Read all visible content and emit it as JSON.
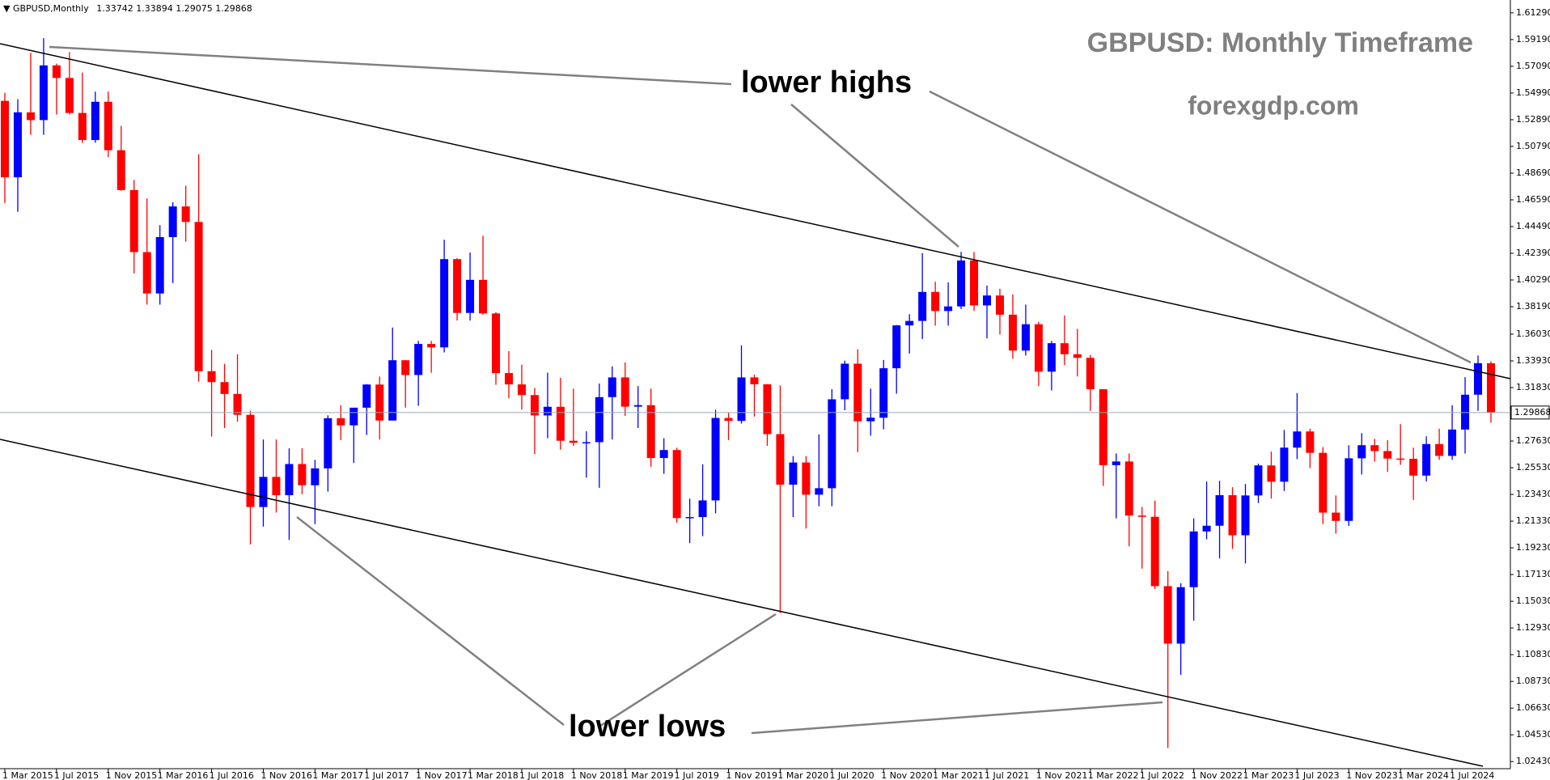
{
  "chart_data": {
    "type": "candlestick",
    "symbol": "GBPUSD,Monthly",
    "title": "GBPUSD: Monthly Timeframe",
    "subtitle": "forexgdp.com",
    "annotations": [
      "lower highs",
      "lower lows"
    ],
    "up_color": "#0000ff",
    "down_color": "#ff0000",
    "categories": [
      "1 Mar 2015",
      null,
      null,
      null,
      "1 Jul 2015",
      null,
      null,
      null,
      "1 Nov 2015",
      null,
      null,
      null,
      "1 Mar 2016",
      null,
      null,
      null,
      "1 Jul 2016",
      null,
      null,
      null,
      "1 Nov 2016",
      null,
      null,
      null,
      "1 Mar 2017",
      null,
      null,
      null,
      "1 Jul 2017",
      null,
      null,
      null,
      "1 Nov 2017",
      null,
      null,
      null,
      "1 Mar 2018",
      null,
      null,
      null,
      "1 Jul 2018",
      null,
      null,
      null,
      "1 Nov 2018",
      null,
      null,
      null,
      "1 Mar 2019",
      null,
      null,
      null,
      "1 Jul 2019",
      null,
      null,
      null,
      "1 Nov 2019",
      null,
      null,
      null,
      "1 Mar 2020",
      null,
      null,
      null,
      "1 Jul 2020",
      null,
      null,
      null,
      "1 Nov 2020",
      null,
      null,
      null,
      "1 Mar 2021",
      null,
      null,
      null,
      "1 Jul 2021",
      null,
      null,
      null,
      "1 Nov 2021",
      null,
      null,
      null,
      "1 Mar 2022",
      null,
      null,
      null,
      "1 Jul 2022",
      null,
      null,
      null,
      "1 Nov 2022",
      null,
      null,
      null,
      "1 Mar 2023",
      null,
      null,
      null,
      "1 Jul 2023",
      null,
      null,
      null,
      "1 Nov 2023",
      null,
      null,
      null,
      "1 Mar 2024",
      null,
      null,
      null,
      "1 Jul 2024",
      null,
      null,
      null
    ],
    "ohlc": [
      [
        1.5437,
        1.55,
        1.4633,
        1.4836
      ],
      [
        1.4836,
        1.545,
        1.4565,
        1.5347
      ],
      [
        1.5347,
        1.5815,
        1.517,
        1.5286
      ],
      [
        1.5286,
        1.593,
        1.517,
        1.5716
      ],
      [
        1.5716,
        1.573,
        1.533,
        1.5617
      ],
      [
        1.5617,
        1.582,
        1.533,
        1.5342
      ],
      [
        1.5342,
        1.566,
        1.5107,
        1.5129
      ],
      [
        1.5129,
        1.551,
        1.5108,
        1.543
      ],
      [
        1.543,
        1.551,
        1.4995,
        1.5049
      ],
      [
        1.5049,
        1.524,
        1.473,
        1.4736
      ],
      [
        1.4736,
        1.4815,
        1.408,
        1.4248
      ],
      [
        1.4248,
        1.467,
        1.3835,
        1.3923
      ],
      [
        1.3923,
        1.446,
        1.3835,
        1.4366
      ],
      [
        1.4366,
        1.464,
        1.4005,
        1.4607
      ],
      [
        1.4607,
        1.477,
        1.433,
        1.4485
      ],
      [
        1.4485,
        1.5018,
        1.323,
        1.3312
      ],
      [
        1.3312,
        1.348,
        1.2798,
        1.3226
      ],
      [
        1.3226,
        1.337,
        1.2865,
        1.3133
      ],
      [
        1.3133,
        1.3445,
        1.2915,
        1.2969
      ],
      [
        1.2969,
        1.3,
        1.195,
        1.2244
      ],
      [
        1.2244,
        1.2775,
        1.209,
        1.2481
      ],
      [
        1.2481,
        1.2775,
        1.22,
        1.2337
      ],
      [
        1.2337,
        1.2705,
        1.1985,
        1.2582
      ],
      [
        1.2582,
        1.2706,
        1.2345,
        1.2415
      ],
      [
        1.2415,
        1.2615,
        1.211,
        1.2548
      ],
      [
        1.2548,
        1.2965,
        1.2365,
        1.2942
      ],
      [
        1.2942,
        1.3045,
        1.277,
        1.2886
      ],
      [
        1.2886,
        1.298,
        1.259,
        1.3025
      ],
      [
        1.3025,
        1.321,
        1.281,
        1.3207
      ],
      [
        1.3207,
        1.327,
        1.2775,
        1.2924
      ],
      [
        1.2924,
        1.3655,
        1.2925,
        1.3398
      ],
      [
        1.3398,
        1.34,
        1.3025,
        1.3282
      ],
      [
        1.3282,
        1.355,
        1.304,
        1.3526
      ],
      [
        1.3526,
        1.355,
        1.33,
        1.3499
      ],
      [
        1.3499,
        1.4345,
        1.346,
        1.4193
      ],
      [
        1.4193,
        1.42,
        1.371,
        1.377
      ],
      [
        1.377,
        1.4245,
        1.371,
        1.403
      ],
      [
        1.403,
        1.4377,
        1.3755,
        1.3766
      ],
      [
        1.3766,
        1.3775,
        1.3205,
        1.3297
      ],
      [
        1.3297,
        1.347,
        1.31,
        1.3208
      ],
      [
        1.3208,
        1.3363,
        1.301,
        1.3124
      ],
      [
        1.3124,
        1.318,
        1.266,
        1.2964
      ],
      [
        1.2964,
        1.33,
        1.2785,
        1.3032
      ],
      [
        1.3032,
        1.326,
        1.2695,
        1.2765
      ],
      [
        1.2765,
        1.3175,
        1.2725,
        1.2749
      ],
      [
        1.2749,
        1.284,
        1.2475,
        1.2754
      ],
      [
        1.2754,
        1.3215,
        1.2395,
        1.3108
      ],
      [
        1.3108,
        1.335,
        1.2775,
        1.3263
      ],
      [
        1.3263,
        1.338,
        1.296,
        1.3033
      ],
      [
        1.3033,
        1.3195,
        1.2865,
        1.3045
      ],
      [
        1.3045,
        1.3175,
        1.256,
        1.2629
      ],
      [
        1.2629,
        1.2785,
        1.2505,
        1.2692
      ],
      [
        1.2692,
        1.271,
        1.212,
        1.2157
      ],
      [
        1.2157,
        1.231,
        1.196,
        1.2165
      ],
      [
        1.2165,
        1.258,
        1.2015,
        1.2296
      ],
      [
        1.2296,
        1.301,
        1.2195,
        1.2944
      ],
      [
        1.2944,
        1.2985,
        1.277,
        1.2921
      ],
      [
        1.2921,
        1.3515,
        1.29,
        1.3263
      ],
      [
        1.3263,
        1.3285,
        1.2955,
        1.3209
      ],
      [
        1.3209,
        1.321,
        1.2725,
        1.2817
      ],
      [
        1.2817,
        1.32,
        1.141,
        1.242
      ],
      [
        1.242,
        1.2645,
        1.2165,
        1.2594
      ],
      [
        1.2594,
        1.2645,
        1.2075,
        1.2341
      ],
      [
        1.2341,
        1.2815,
        1.225,
        1.2392
      ],
      [
        1.2392,
        1.317,
        1.225,
        1.3091
      ],
      [
        1.3091,
        1.3395,
        1.3005,
        1.3371
      ],
      [
        1.3371,
        1.3485,
        1.2675,
        1.2918
      ],
      [
        1.2918,
        1.3175,
        1.2805,
        1.2946
      ],
      [
        1.2946,
        1.34,
        1.2855,
        1.3335
      ],
      [
        1.3335,
        1.3675,
        1.3135,
        1.3672
      ],
      [
        1.3672,
        1.376,
        1.345,
        1.3707
      ],
      [
        1.3707,
        1.424,
        1.3565,
        1.3935
      ],
      [
        1.3935,
        1.4015,
        1.367,
        1.3785
      ],
      [
        1.3785,
        1.401,
        1.367,
        1.3821
      ],
      [
        1.3821,
        1.425,
        1.38,
        1.4182
      ],
      [
        1.4182,
        1.425,
        1.3785,
        1.3829
      ],
      [
        1.3829,
        1.3985,
        1.357,
        1.3907
      ],
      [
        1.3907,
        1.396,
        1.36,
        1.3756
      ],
      [
        1.3756,
        1.3915,
        1.341,
        1.3474
      ],
      [
        1.3474,
        1.3835,
        1.3435,
        1.3681
      ],
      [
        1.3681,
        1.37,
        1.3195,
        1.3308
      ],
      [
        1.3308,
        1.355,
        1.316,
        1.3532
      ],
      [
        1.3532,
        1.375,
        1.336,
        1.3445
      ],
      [
        1.3445,
        1.3645,
        1.327,
        1.3417
      ],
      [
        1.3417,
        1.344,
        1.3,
        1.317
      ],
      [
        1.317,
        1.317,
        1.241,
        1.2573
      ],
      [
        1.2573,
        1.2665,
        1.2155,
        1.2602
      ],
      [
        1.2602,
        1.2665,
        1.1935,
        1.2177
      ],
      [
        1.2177,
        1.2245,
        1.176,
        1.2167
      ],
      [
        1.2167,
        1.2295,
        1.16,
        1.1622
      ],
      [
        1.1622,
        1.174,
        1.035,
        1.117
      ],
      [
        1.117,
        1.1645,
        1.0925,
        1.1614
      ],
      [
        1.1614,
        1.2155,
        1.135,
        1.2052
      ],
      [
        1.2052,
        1.2445,
        1.199,
        1.2097
      ],
      [
        1.2097,
        1.245,
        1.184,
        1.2337
      ],
      [
        1.2337,
        1.24,
        1.1915,
        1.2022
      ],
      [
        1.2022,
        1.2425,
        1.18,
        1.2335
      ],
      [
        1.2335,
        1.2585,
        1.2275,
        1.2571
      ],
      [
        1.2571,
        1.268,
        1.231,
        1.2443
      ],
      [
        1.2443,
        1.285,
        1.237,
        1.2711
      ],
      [
        1.2711,
        1.314,
        1.262,
        1.2838
      ],
      [
        1.2838,
        1.286,
        1.255,
        1.267
      ],
      [
        1.267,
        1.2715,
        1.211,
        1.22
      ],
      [
        1.22,
        1.2335,
        1.2035,
        1.2135
      ],
      [
        1.2135,
        1.273,
        1.2095,
        1.2627
      ],
      [
        1.2627,
        1.2825,
        1.25,
        1.273
      ],
      [
        1.273,
        1.278,
        1.26,
        1.2684
      ],
      [
        1.2684,
        1.277,
        1.252,
        1.2625
      ],
      [
        1.2625,
        1.2895,
        1.2575,
        1.2623
      ],
      [
        1.2623,
        1.271,
        1.23,
        1.2491
      ],
      [
        1.2491,
        1.28,
        1.2445,
        1.2739
      ],
      [
        1.2739,
        1.286,
        1.2615,
        1.2646
      ],
      [
        1.2646,
        1.3045,
        1.2615,
        1.2853
      ],
      [
        1.2853,
        1.3265,
        1.2665,
        1.3127
      ],
      [
        1.3127,
        1.3435,
        1.3,
        1.3375
      ],
      [
        1.33742,
        1.33894,
        1.29075,
        1.29868
      ]
    ],
    "ylim": [
      1.0187,
      1.623
    ],
    "yticks": [
      {
        "value": 1.6129,
        "label": "1.61290"
      },
      {
        "value": 1.5919,
        "label": "1.59190"
      },
      {
        "value": 1.5709,
        "label": "1.57090"
      },
      {
        "value": 1.5499,
        "label": "1.54990"
      },
      {
        "value": 1.5289,
        "label": "1.52890"
      },
      {
        "value": 1.5079,
        "label": "1.50790"
      },
      {
        "value": 1.4869,
        "label": "1.48690"
      },
      {
        "value": 1.4659,
        "label": "1.46590"
      },
      {
        "value": 1.4449,
        "label": "1.44490"
      },
      {
        "value": 1.4239,
        "label": "1.42390"
      },
      {
        "value": 1.4029,
        "label": "1.40290"
      },
      {
        "value": 1.3819,
        "label": "1.38190"
      },
      {
        "value": 1.3603,
        "label": "1.36030"
      },
      {
        "value": 1.3393,
        "label": "1.33930"
      },
      {
        "value": 1.3183,
        "label": "1.31830"
      },
      {
        "value": 1.2763,
        "label": "1.27630"
      },
      {
        "value": 1.2553,
        "label": "1.25530"
      },
      {
        "value": 1.2343,
        "label": "1.23430"
      },
      {
        "value": 1.2133,
        "label": "1.21330"
      },
      {
        "value": 1.1923,
        "label": "1.19230"
      },
      {
        "value": 1.1713,
        "label": "1.17130"
      },
      {
        "value": 1.1503,
        "label": "1.15030"
      },
      {
        "value": 1.1293,
        "label": "1.12930"
      },
      {
        "value": 1.1083,
        "label": "1.10830"
      },
      {
        "value": 1.0873,
        "label": "1.08730"
      },
      {
        "value": 1.0663,
        "label": "1.06630"
      },
      {
        "value": 1.0453,
        "label": "1.04530"
      },
      {
        "value": 1.0243,
        "label": "1.02430"
      }
    ],
    "grid": false
  }
}
